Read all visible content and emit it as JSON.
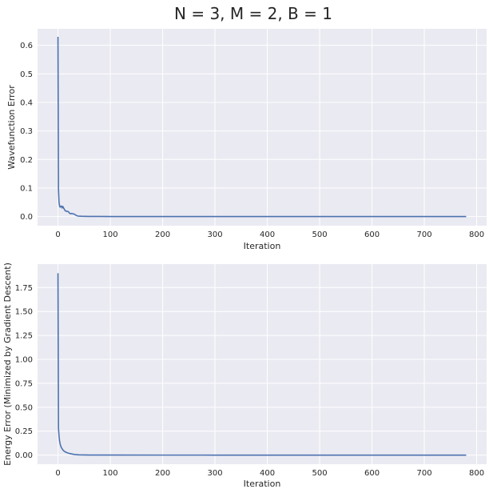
{
  "title": "N = 3, M = 2, B = 1",
  "colors": {
    "background": "#eaeaf2",
    "grid": "#ffffff",
    "series": "#4c72b0",
    "text": "#262626"
  },
  "chart_data": [
    {
      "type": "line",
      "xlabel": "Iteration",
      "ylabel": "Wavefunction Error",
      "xlim": [
        -39,
        819
      ],
      "ylim": [
        -0.032,
        0.658
      ],
      "xticks": [
        0,
        100,
        200,
        300,
        400,
        500,
        600,
        700,
        800
      ],
      "yticks": [
        0.0,
        0.1,
        0.2,
        0.3,
        0.4,
        0.5,
        0.6
      ],
      "xtick_labels": [
        "0",
        "100",
        "200",
        "300",
        "400",
        "500",
        "600",
        "700",
        "800"
      ],
      "ytick_labels": [
        "0.0",
        "0.1",
        "0.2",
        "0.3",
        "0.4",
        "0.5",
        "0.6"
      ],
      "grid": true,
      "series": [
        {
          "x": [
            0,
            1,
            2,
            3,
            4,
            5,
            6,
            7,
            8,
            9,
            10,
            12,
            14,
            16,
            18,
            20,
            22,
            24,
            26,
            28,
            30,
            32,
            34,
            36,
            38,
            40,
            45,
            50,
            60,
            80,
            100,
            150,
            200,
            300,
            400,
            500,
            600,
            700,
            780
          ],
          "y": [
            0.63,
            0.095,
            0.05,
            0.038,
            0.033,
            0.035,
            0.037,
            0.034,
            0.03,
            0.036,
            0.033,
            0.026,
            0.02,
            0.019,
            0.018,
            0.017,
            0.012,
            0.01,
            0.011,
            0.01,
            0.009,
            0.008,
            0.005,
            0.003,
            0.002,
            0.0015,
            0.001,
            0.0008,
            0.0005,
            0.0003,
            0.0002,
            0.0001,
            0.0001,
            0.0,
            0.0,
            0.0,
            0.0,
            0.0,
            0.0
          ]
        }
      ]
    },
    {
      "type": "line",
      "xlabel": "Iteration",
      "ylabel": "Energy Error (Minimized by Gradient Descent)",
      "xlim": [
        -39,
        819
      ],
      "ylim": [
        -0.095,
        1.995
      ],
      "xticks": [
        0,
        100,
        200,
        300,
        400,
        500,
        600,
        700,
        800
      ],
      "yticks": [
        0.0,
        0.25,
        0.5,
        0.75,
        1.0,
        1.25,
        1.5,
        1.75
      ],
      "xtick_labels": [
        "0",
        "100",
        "200",
        "300",
        "400",
        "500",
        "600",
        "700",
        "800"
      ],
      "ytick_labels": [
        "0.00",
        "0.25",
        "0.50",
        "0.75",
        "1.00",
        "1.25",
        "1.50",
        "1.75"
      ],
      "grid": true,
      "series": [
        {
          "x": [
            0,
            1,
            2,
            3,
            4,
            5,
            6,
            8,
            10,
            12,
            15,
            20,
            25,
            30,
            35,
            40,
            50,
            60,
            80,
            100,
            200,
            300,
            400,
            500,
            600,
            700,
            780
          ],
          "y": [
            1.9,
            0.28,
            0.2,
            0.15,
            0.12,
            0.1,
            0.085,
            0.065,
            0.05,
            0.04,
            0.03,
            0.02,
            0.013,
            0.008,
            0.005,
            0.003,
            0.002,
            0.001,
            0.0005,
            0.0002,
            0.0001,
            0.0,
            0.0,
            0.0,
            0.0,
            0.0,
            0.0
          ]
        }
      ]
    }
  ]
}
